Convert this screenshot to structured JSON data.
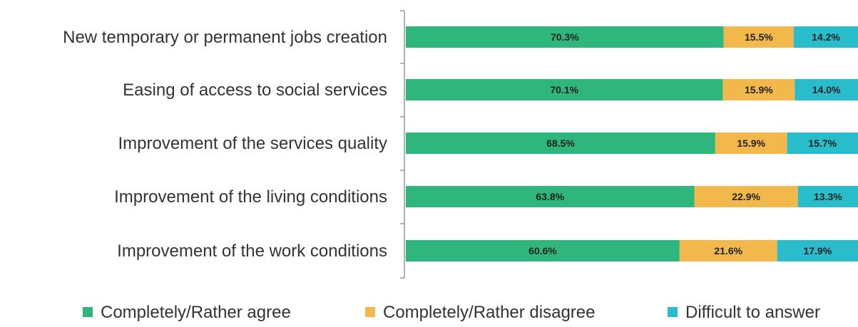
{
  "chart_data": {
    "type": "bar",
    "orientation": "horizontal",
    "stacked": true,
    "categories": [
      "New temporary or permanent jobs creation",
      "Easing of access to social services",
      "Improvement of the services quality",
      "Improvement of the living conditions",
      "Improvement of the work conditions"
    ],
    "series": [
      {
        "name": "Completely/Rather agree",
        "color": "#2eb67d",
        "values": [
          70.3,
          70.1,
          68.5,
          63.8,
          60.6
        ],
        "labels": [
          "70.3%",
          "70.1%",
          "68.5%",
          "63.8%",
          "60.6%"
        ]
      },
      {
        "name": "Completely/Rather disagree",
        "color": "#f2b84b",
        "values": [
          15.5,
          15.9,
          15.9,
          22.9,
          21.6
        ],
        "labels": [
          "15.5%",
          "15.9%",
          "15.9%",
          "22.9%",
          "21.6%"
        ]
      },
      {
        "name": "Difficult to answer",
        "color": "#29bccb",
        "values": [
          14.2,
          14.0,
          15.7,
          13.3,
          17.9
        ],
        "labels": [
          "14.2%",
          "14.0%",
          "15.7%",
          "13.3%",
          "17.9%"
        ]
      }
    ],
    "xlim": [
      0,
      100
    ],
    "grid": false,
    "legend_position": "bottom"
  }
}
